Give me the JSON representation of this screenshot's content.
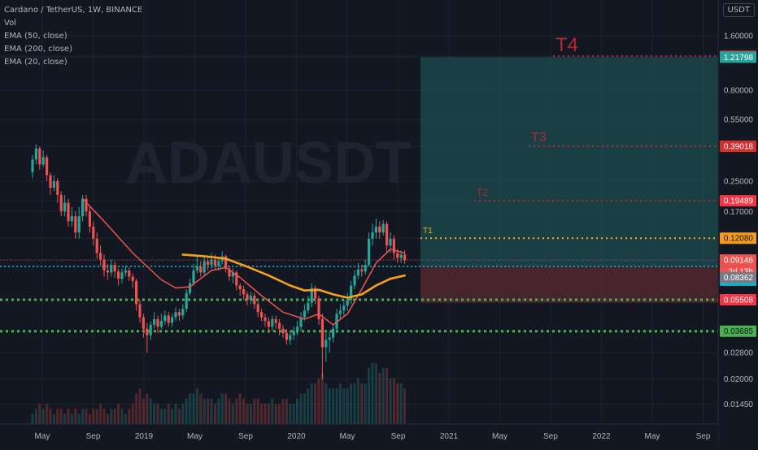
{
  "legend": {
    "symbol": "Cardano / TetherUS, 1W, BINANCE",
    "vol": "Vol",
    "ema50": "EMA (50, close)",
    "ema200": "EMA (200, close)",
    "ema20": "EMA (20, close)"
  },
  "currency_button": "USDT",
  "watermark": "ADAUSDT",
  "chart_data": {
    "type": "candlestick",
    "y_scale": "log",
    "ylim": [
      0.0125,
      2.4
    ],
    "y_ticks": [
      "0.01450",
      "0.02000",
      "0.02800",
      "0.03685",
      "0.05508",
      "0.08362",
      "0.08432",
      "0.09146",
      "0.12080",
      "0.17000",
      "0.19489",
      "0.25000",
      "0.39018",
      "0.55000",
      "0.80000",
      "1.21798",
      "1.23649",
      "1.60000"
    ],
    "x_labels": [
      "May",
      "Sep",
      "2019",
      "May",
      "Sep",
      "2020",
      "May",
      "Sep",
      "2021",
      "May",
      "Sep",
      "2022",
      "May",
      "Sep"
    ],
    "countdown": "2d 13h",
    "colors": {
      "up": "#26a69a",
      "down": "#ef5350",
      "ema20": "#ef5350",
      "ema50": "#f7a21b",
      "target": "#b2292e",
      "t1": "#f2b211",
      "support": "#4caf50",
      "long_profit": "#1f5f5e",
      "long_loss": "#5b2a31"
    },
    "targets": [
      {
        "label": "T1",
        "value": 0.1208
      },
      {
        "label": "T2",
        "value": 0.19489
      },
      {
        "label": "T3",
        "value": 0.39018
      },
      {
        "label": "T4",
        "value": 1.23649
      }
    ],
    "price_levels": [
      {
        "value": 1.23649,
        "label": "1.23649",
        "bg": "#b2292e",
        "fg": "#ffffff"
      },
      {
        "value": 1.21798,
        "label": "1.21798",
        "bg": "#26a69a",
        "fg": "#ffffff"
      },
      {
        "value": 0.39018,
        "label": "0.39018",
        "bg": "#d32f2f",
        "fg": "#ffffff"
      },
      {
        "value": 0.19489,
        "label": "0.19489",
        "bg": "#f23645",
        "fg": "#ffffff"
      },
      {
        "value": 0.1208,
        "label": "0.12080",
        "bg": "#f59b1c",
        "fg": "#131722"
      },
      {
        "value": 0.09146,
        "label": "0.09146",
        "bg": "#ef5350",
        "fg": "#ffffff"
      },
      {
        "value": 0.08432,
        "label": "0.08432",
        "bg": "#00bcd4",
        "fg": "#131722"
      },
      {
        "value": 0.08362,
        "label": "0.08362",
        "bg": "#787b86",
        "fg": "#ffffff"
      },
      {
        "value": 0.05508,
        "label": "0.05508",
        "bg": "#f23645",
        "fg": "#ffffff"
      },
      {
        "value": 0.03685,
        "label": "0.03685",
        "bg": "#4caf50",
        "fg": "#131722"
      }
    ],
    "support_levels": [
      0.05508,
      0.03685
    ],
    "current_price": 0.09146,
    "long_position": {
      "entry": 0.08432,
      "target": 1.21798,
      "stop": 0.053
    },
    "candles": [
      [
        0.28,
        0.33,
        0.35,
        0.26
      ],
      [
        0.33,
        0.38,
        0.4,
        0.31
      ],
      [
        0.38,
        0.31,
        0.39,
        0.29
      ],
      [
        0.31,
        0.34,
        0.37,
        0.3
      ],
      [
        0.34,
        0.27,
        0.35,
        0.25
      ],
      [
        0.27,
        0.23,
        0.28,
        0.21
      ],
      [
        0.23,
        0.25,
        0.27,
        0.22
      ],
      [
        0.25,
        0.21,
        0.26,
        0.19
      ],
      [
        0.21,
        0.17,
        0.22,
        0.16
      ],
      [
        0.17,
        0.19,
        0.21,
        0.16
      ],
      [
        0.19,
        0.15,
        0.2,
        0.14
      ],
      [
        0.15,
        0.16,
        0.18,
        0.14
      ],
      [
        0.16,
        0.13,
        0.17,
        0.12
      ],
      [
        0.13,
        0.16,
        0.18,
        0.12
      ],
      [
        0.16,
        0.2,
        0.21,
        0.15
      ],
      [
        0.2,
        0.17,
        0.21,
        0.16
      ],
      [
        0.17,
        0.14,
        0.18,
        0.13
      ],
      [
        0.14,
        0.12,
        0.15,
        0.11
      ],
      [
        0.12,
        0.1,
        0.13,
        0.093
      ],
      [
        0.1,
        0.092,
        0.11,
        0.085
      ],
      [
        0.092,
        0.08,
        0.098,
        0.074
      ],
      [
        0.08,
        0.078,
        0.087,
        0.071
      ],
      [
        0.078,
        0.086,
        0.092,
        0.074
      ],
      [
        0.086,
        0.079,
        0.09,
        0.073
      ],
      [
        0.079,
        0.072,
        0.082,
        0.066
      ],
      [
        0.072,
        0.078,
        0.082,
        0.068
      ],
      [
        0.078,
        0.08,
        0.085,
        0.074
      ],
      [
        0.08,
        0.074,
        0.083,
        0.07
      ],
      [
        0.074,
        0.07,
        0.077,
        0.064
      ],
      [
        0.07,
        0.052,
        0.072,
        0.048
      ],
      [
        0.052,
        0.044,
        0.055,
        0.041
      ],
      [
        0.044,
        0.038,
        0.046,
        0.034
      ],
      [
        0.038,
        0.035,
        0.041,
        0.028
      ],
      [
        0.035,
        0.04,
        0.042,
        0.033
      ],
      [
        0.04,
        0.043,
        0.047,
        0.038
      ],
      [
        0.043,
        0.039,
        0.045,
        0.036
      ],
      [
        0.039,
        0.042,
        0.046,
        0.038
      ],
      [
        0.042,
        0.045,
        0.048,
        0.04
      ],
      [
        0.045,
        0.041,
        0.047,
        0.039
      ],
      [
        0.041,
        0.044,
        0.046,
        0.039
      ],
      [
        0.044,
        0.047,
        0.05,
        0.042
      ],
      [
        0.047,
        0.045,
        0.049,
        0.042
      ],
      [
        0.045,
        0.049,
        0.052,
        0.043
      ],
      [
        0.049,
        0.06,
        0.063,
        0.047
      ],
      [
        0.06,
        0.068,
        0.072,
        0.058
      ],
      [
        0.068,
        0.08,
        0.087,
        0.066
      ],
      [
        0.08,
        0.084,
        0.096,
        0.077
      ],
      [
        0.084,
        0.078,
        0.09,
        0.074
      ],
      [
        0.078,
        0.09,
        0.097,
        0.075
      ],
      [
        0.09,
        0.086,
        0.094,
        0.08
      ],
      [
        0.086,
        0.092,
        0.1,
        0.082
      ],
      [
        0.092,
        0.085,
        0.098,
        0.081
      ],
      [
        0.085,
        0.09,
        0.095,
        0.08
      ],
      [
        0.09,
        0.096,
        0.102,
        0.086
      ],
      [
        0.096,
        0.082,
        0.098,
        0.078
      ],
      [
        0.082,
        0.074,
        0.085,
        0.07
      ],
      [
        0.074,
        0.078,
        0.082,
        0.068
      ],
      [
        0.078,
        0.066,
        0.08,
        0.062
      ],
      [
        0.066,
        0.063,
        0.068,
        0.058
      ],
      [
        0.063,
        0.059,
        0.066,
        0.055
      ],
      [
        0.059,
        0.055,
        0.061,
        0.051
      ],
      [
        0.055,
        0.058,
        0.061,
        0.052
      ],
      [
        0.058,
        0.052,
        0.06,
        0.049
      ],
      [
        0.052,
        0.047,
        0.054,
        0.044
      ],
      [
        0.047,
        0.044,
        0.049,
        0.042
      ],
      [
        0.044,
        0.042,
        0.046,
        0.039
      ],
      [
        0.042,
        0.039,
        0.044,
        0.036
      ],
      [
        0.039,
        0.043,
        0.045,
        0.037
      ],
      [
        0.043,
        0.041,
        0.045,
        0.038
      ],
      [
        0.041,
        0.038,
        0.043,
        0.035
      ],
      [
        0.038,
        0.036,
        0.04,
        0.034
      ],
      [
        0.036,
        0.033,
        0.038,
        0.031
      ],
      [
        0.033,
        0.035,
        0.037,
        0.031
      ],
      [
        0.035,
        0.037,
        0.039,
        0.033
      ],
      [
        0.037,
        0.039,
        0.042,
        0.035
      ],
      [
        0.039,
        0.044,
        0.047,
        0.037
      ],
      [
        0.044,
        0.048,
        0.052,
        0.042
      ],
      [
        0.048,
        0.053,
        0.058,
        0.046
      ],
      [
        0.053,
        0.064,
        0.068,
        0.05
      ],
      [
        0.064,
        0.056,
        0.066,
        0.052
      ],
      [
        0.056,
        0.043,
        0.058,
        0.04
      ],
      [
        0.043,
        0.03,
        0.046,
        0.02
      ],
      [
        0.03,
        0.033,
        0.036,
        0.025
      ],
      [
        0.033,
        0.034,
        0.037,
        0.028
      ],
      [
        0.034,
        0.038,
        0.04,
        0.032
      ],
      [
        0.038,
        0.046,
        0.049,
        0.036
      ],
      [
        0.046,
        0.048,
        0.052,
        0.043
      ],
      [
        0.048,
        0.051,
        0.055,
        0.045
      ],
      [
        0.051,
        0.055,
        0.06,
        0.048
      ],
      [
        0.055,
        0.066,
        0.07,
        0.052
      ],
      [
        0.066,
        0.075,
        0.08,
        0.063
      ],
      [
        0.075,
        0.081,
        0.088,
        0.072
      ],
      [
        0.081,
        0.079,
        0.086,
        0.074
      ],
      [
        0.079,
        0.086,
        0.092,
        0.076
      ],
      [
        0.086,
        0.12,
        0.13,
        0.084
      ],
      [
        0.12,
        0.13,
        0.145,
        0.11
      ],
      [
        0.13,
        0.14,
        0.155,
        0.12
      ],
      [
        0.14,
        0.13,
        0.15,
        0.12
      ],
      [
        0.13,
        0.145,
        0.152,
        0.125
      ],
      [
        0.145,
        0.11,
        0.15,
        0.1
      ],
      [
        0.11,
        0.12,
        0.13,
        0.1
      ],
      [
        0.12,
        0.1,
        0.125,
        0.092
      ],
      [
        0.1,
        0.094,
        0.105,
        0.088
      ],
      [
        0.094,
        0.098,
        0.103,
        0.088
      ],
      [
        0.098,
        0.09146,
        0.104,
        0.087
      ]
    ],
    "ema20": [
      {
        "i": 14,
        "v": 0.2
      },
      {
        "i": 20,
        "v": 0.15
      },
      {
        "i": 28,
        "v": 0.1
      },
      {
        "i": 36,
        "v": 0.071
      },
      {
        "i": 40,
        "v": 0.064
      },
      {
        "i": 44,
        "v": 0.065
      },
      {
        "i": 50,
        "v": 0.08
      },
      {
        "i": 54,
        "v": 0.083
      },
      {
        "i": 58,
        "v": 0.073
      },
      {
        "i": 64,
        "v": 0.058
      },
      {
        "i": 70,
        "v": 0.047
      },
      {
        "i": 76,
        "v": 0.043
      },
      {
        "i": 80,
        "v": 0.046
      },
      {
        "i": 84,
        "v": 0.04
      },
      {
        "i": 88,
        "v": 0.046
      },
      {
        "i": 92,
        "v": 0.063
      },
      {
        "i": 96,
        "v": 0.088
      },
      {
        "i": 100,
        "v": 0.105
      },
      {
        "i": 104,
        "v": 0.1
      }
    ],
    "ema50": [
      {
        "i": 42,
        "v": 0.098
      },
      {
        "i": 48,
        "v": 0.096
      },
      {
        "i": 54,
        "v": 0.093
      },
      {
        "i": 60,
        "v": 0.084
      },
      {
        "i": 66,
        "v": 0.075
      },
      {
        "i": 72,
        "v": 0.066
      },
      {
        "i": 76,
        "v": 0.062
      },
      {
        "i": 80,
        "v": 0.0625
      },
      {
        "i": 84,
        "v": 0.059
      },
      {
        "i": 88,
        "v": 0.0565
      },
      {
        "i": 92,
        "v": 0.059
      },
      {
        "i": 96,
        "v": 0.066
      },
      {
        "i": 100,
        "v": 0.072
      },
      {
        "i": 104,
        "v": 0.075
      }
    ],
    "volume": [
      2,
      3,
      4,
      3,
      4,
      3,
      2,
      3,
      3,
      2,
      3,
      2,
      3,
      2,
      3,
      3,
      2,
      3,
      3,
      4,
      3,
      2,
      3,
      3,
      4,
      3,
      2,
      3,
      4,
      6,
      7,
      5,
      6,
      5,
      4,
      4,
      3,
      3,
      4,
      3,
      4,
      3,
      4,
      5,
      6,
      6,
      7,
      6,
      5,
      5,
      5,
      4,
      5,
      6,
      6,
      5,
      4,
      5,
      6,
      5,
      4,
      4,
      5,
      5,
      4,
      4,
      4,
      5,
      4,
      4,
      5,
      5,
      4,
      4,
      5,
      6,
      6,
      7,
      8,
      8,
      9,
      10,
      8,
      7,
      7,
      7,
      8,
      7,
      7,
      8,
      8,
      9,
      8,
      8,
      11,
      12,
      12,
      10,
      11,
      11,
      9,
      9,
      8,
      8,
      7
    ]
  }
}
